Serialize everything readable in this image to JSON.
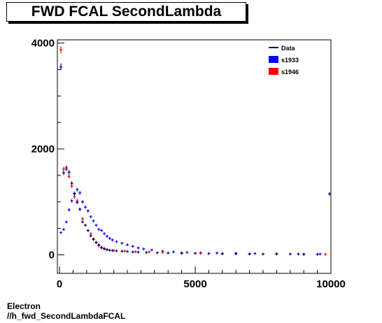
{
  "title": "FWD FCAL SecondLambda",
  "footer": {
    "line1": "Electron",
    "line2": "//h_fwd_SecondLambdaFCAL"
  },
  "colors": {
    "data": "#00007a",
    "s1933": "#0000ff",
    "s1946": "#ff0000"
  },
  "chart_data": {
    "type": "scatter",
    "title": "FWD FCAL SecondLambda",
    "xlim": [
      -80,
      10000
    ],
    "ylim": [
      -350,
      4060
    ],
    "x_ticks": [
      0,
      5000,
      10000
    ],
    "x_tick_labels": [
      "0",
      "5000",
      "10000"
    ],
    "y_ticks": [
      0,
      2000,
      4000
    ],
    "y_tick_labels": [
      "0",
      "2000",
      "4000"
    ],
    "legend_position": "top-right",
    "series": [
      {
        "name": "Data",
        "color": "#00007a",
        "x": [
          50,
          150,
          250,
          350,
          450,
          550,
          650,
          750,
          850,
          950,
          1050,
          1150,
          1250,
          1350,
          1450,
          1550,
          1650,
          1750,
          1850,
          1950,
          2100,
          2300,
          2500,
          2700,
          2900,
          3200,
          3600,
          4000,
          4500,
          5000,
          5500,
          6000,
          6500,
          7000,
          7500,
          8000,
          8500,
          9000,
          9500,
          9950
        ],
        "y": [
          3550,
          1550,
          1620,
          1560,
          1350,
          1150,
          990,
          860,
          620,
          560,
          460,
          360,
          290,
          230,
          190,
          140,
          110,
          95,
          85,
          80,
          75,
          70,
          65,
          55,
          50,
          45,
          40,
          35,
          30,
          30,
          25,
          20,
          20,
          15,
          15,
          15,
          15,
          10,
          10,
          1150
        ]
      },
      {
        "name": "s1933",
        "color": "#0000ff",
        "x": [
          50,
          150,
          250,
          350,
          450,
          550,
          650,
          750,
          850,
          950,
          1050,
          1150,
          1250,
          1350,
          1450,
          1550,
          1650,
          1750,
          1850,
          1950,
          2100,
          2300,
          2500,
          2700,
          2900,
          3100,
          3400,
          3800,
          4200,
          4700,
          5200,
          5800,
          6500,
          7200,
          8000,
          8800,
          9600
        ],
        "y": [
          420,
          480,
          620,
          850,
          1020,
          1160,
          1230,
          1170,
          1000,
          900,
          830,
          720,
          640,
          560,
          480,
          460,
          400,
          350,
          310,
          280,
          250,
          220,
          190,
          160,
          130,
          110,
          90,
          70,
          55,
          45,
          40,
          35,
          30,
          25,
          20,
          15,
          15
        ]
      },
      {
        "name": "s1946",
        "color": "#ff0000",
        "x": [
          50,
          150,
          250,
          350,
          450,
          550,
          650,
          750,
          850,
          950,
          1050,
          1150,
          1250,
          1350,
          1450,
          1550,
          1650,
          1750,
          2000,
          2400,
          2800,
          3300,
          3800,
          4500,
          5200,
          6000,
          7000,
          8000,
          9000,
          9800
        ],
        "y": [
          3870,
          1620,
          1650,
          1480,
          1300,
          1100,
          1020,
          860,
          680,
          560,
          460,
          400,
          300,
          240,
          170,
          130,
          120,
          100,
          80,
          70,
          60,
          55,
          45,
          40,
          30,
          25,
          20,
          20,
          15,
          10
        ]
      }
    ]
  }
}
